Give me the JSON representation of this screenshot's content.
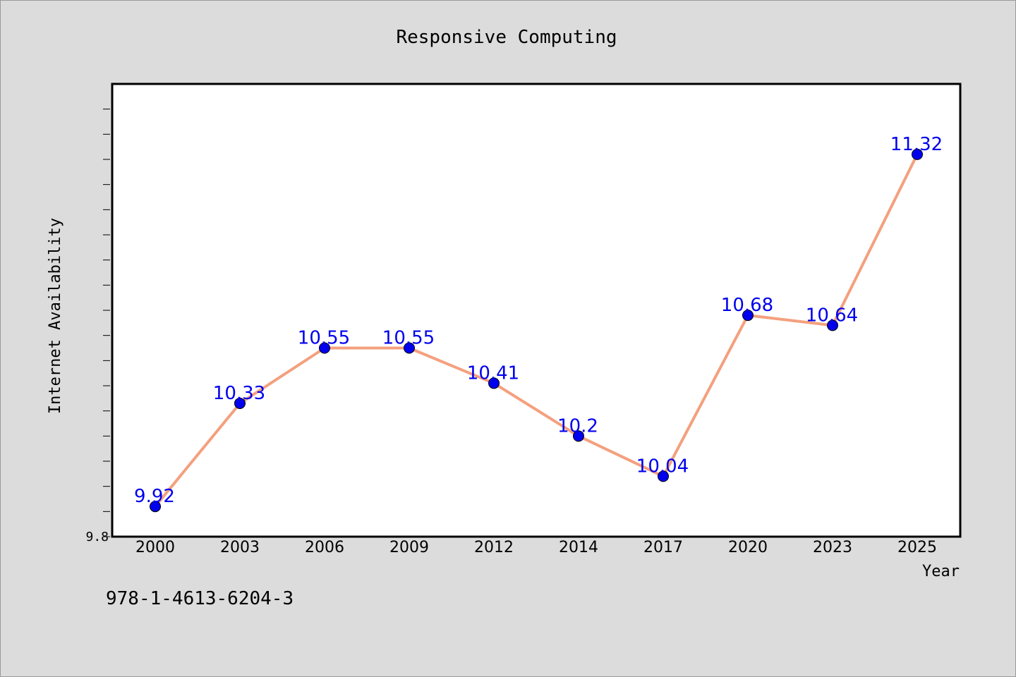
{
  "chart_data": {
    "type": "line",
    "title": "Responsive Computing",
    "xlabel": "Year",
    "ylabel": "Internet Availability",
    "categories": [
      "2000",
      "2003",
      "2006",
      "2009",
      "2012",
      "2014",
      "2017",
      "2020",
      "2023",
      "2025"
    ],
    "series": [
      {
        "values": [
          9.92,
          10.33,
          10.55,
          10.55,
          10.41,
          10.2,
          10.04,
          10.68,
          10.64,
          11.32
        ],
        "line_color": "#f4a07e",
        "marker_color": "#0000ee",
        "label_color": "#0000ee"
      }
    ],
    "ylim": [
      9.8,
      11.6
    ],
    "y_tick_labels": [
      "9.8"
    ],
    "grid": false,
    "data_labels": true
  },
  "footnote": "978-1-4613-6204-3"
}
